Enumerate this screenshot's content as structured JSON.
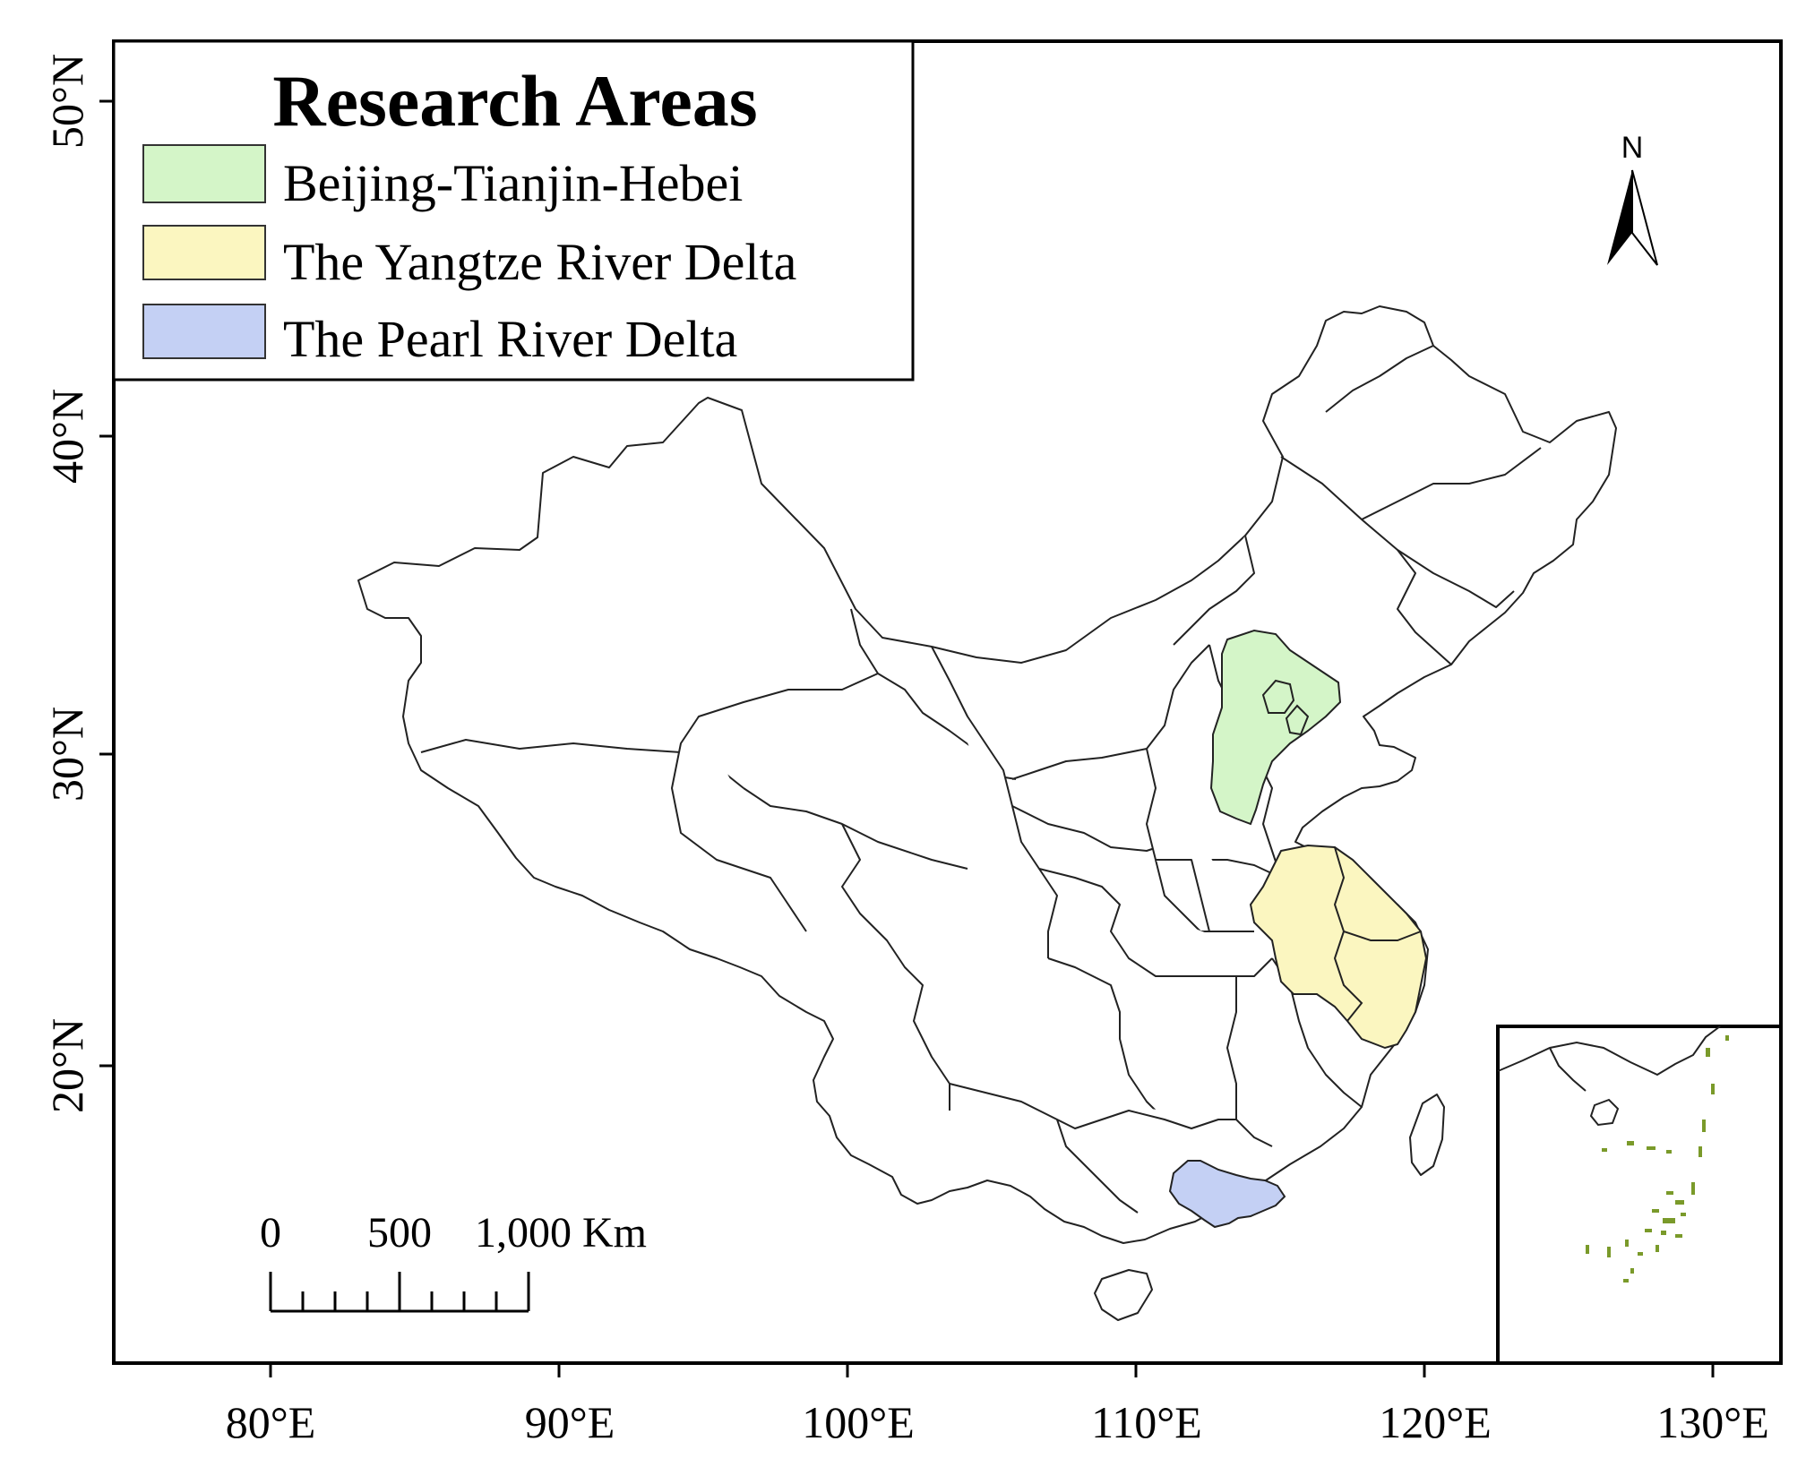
{
  "map": {
    "legend": {
      "title": "Research Areas",
      "items": [
        {
          "label": "Beijing-Tianjin-Hebei",
          "color": "#d4f5c8"
        },
        {
          "label": "The Yangtze River Delta",
          "color": "#fbf6c0"
        },
        {
          "label": "The Pearl River Delta",
          "color": "#c4d0f4"
        }
      ]
    },
    "north_arrow": {
      "label": "N"
    },
    "scale_bar": {
      "labels": [
        "0",
        "500",
        "1,000 Km"
      ]
    },
    "x_ticks": [
      "80°E",
      "90°E",
      "100°E",
      "110°E",
      "120°E",
      "130°E"
    ],
    "y_ticks": [
      "50°N",
      "40°N",
      "30°N",
      "20°N"
    ],
    "colors": {
      "frame": "#000000",
      "outline": "#222222",
      "inset_islands": "#7a9a2a"
    }
  }
}
